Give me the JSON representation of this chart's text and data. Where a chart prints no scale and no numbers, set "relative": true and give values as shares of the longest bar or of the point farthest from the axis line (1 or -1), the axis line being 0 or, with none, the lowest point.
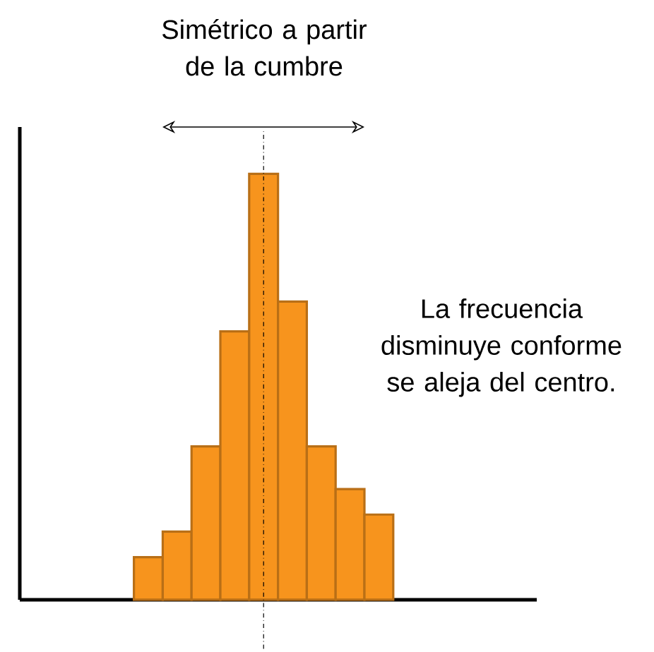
{
  "chart_data": {
    "type": "bar",
    "relative": true,
    "categories": [
      null,
      null,
      null,
      null,
      null,
      null,
      null,
      null,
      null
    ],
    "values": [
      0.1,
      0.16,
      0.36,
      0.63,
      1,
      0.7,
      0.36,
      0.26,
      0.2
    ],
    "color": "#f7941d",
    "annotations": [
      "Simétrico a partir de la cumbre",
      "La frecuencia disminuye conforme se aleja del centro."
    ]
  }
}
